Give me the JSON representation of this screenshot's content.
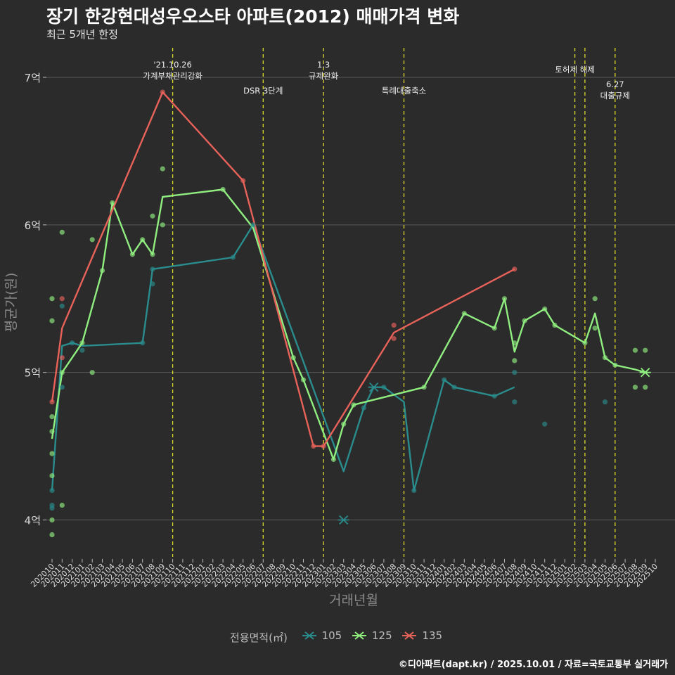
{
  "title": "장기 한강현대성우오스타 아파트(2012) 매매가격 변화",
  "subtitle": "최근 5개년 한정",
  "caption": "©디아파트(dapt.kr) / 2025.10.01 / 자료=국토교통부 실거래가",
  "legend": {
    "title": "전용면적(㎡)",
    "items": [
      {
        "label": "105",
        "color": "#2a8c8c"
      },
      {
        "label": "125",
        "color": "#90ee80"
      },
      {
        "label": "135",
        "color": "#e8625a"
      }
    ]
  },
  "chart_data": {
    "type": "line",
    "xlabel": "거래년월",
    "ylabel": "평균가(원)",
    "ylim": [
      3.75,
      7.2
    ],
    "y_ticks": [
      4,
      5,
      6,
      7
    ],
    "y_tick_labels": [
      "4억",
      "5억",
      "6억",
      "7억"
    ],
    "grid": true,
    "legend_position": "bottom",
    "x_months": [
      "202010",
      "202011",
      "202012",
      "202101",
      "202102",
      "202103",
      "202104",
      "202105",
      "202106",
      "202107",
      "202108",
      "202109",
      "202110",
      "202111",
      "202112",
      "202201",
      "202202",
      "202203",
      "202204",
      "202205",
      "202206",
      "202207",
      "202208",
      "202209",
      "202210",
      "202211",
      "202212",
      "202301",
      "202302",
      "202303",
      "202304",
      "202305",
      "202306",
      "202307",
      "202308",
      "202309",
      "202310",
      "202311",
      "202312",
      "202401",
      "202402",
      "202403",
      "202404",
      "202405",
      "202406",
      "202407",
      "202408",
      "202409",
      "202410",
      "202411",
      "202412",
      "202501",
      "202502",
      "202503",
      "202504",
      "202505",
      "202506",
      "202507",
      "202508",
      "202509",
      "202510"
    ],
    "events": [
      {
        "x": "202110",
        "lines": [
          "'21.10.26",
          "가계부채관리강화"
        ],
        "level": 0
      },
      {
        "x": "202207",
        "lines": [
          "DSR 3단계"
        ],
        "level": 1
      },
      {
        "x": "202301",
        "lines": [
          "1.3",
          "규제완화"
        ],
        "level": 0
      },
      {
        "x": "202309",
        "lines": [
          "특례대출축소"
        ],
        "level": 1
      },
      {
        "x": "202502",
        "lines": [
          "토허제 해제"
        ],
        "level": 2
      },
      {
        "x": "202503",
        "lines": [],
        "level": 2
      },
      {
        "x": "202506",
        "lines": [
          "6.27",
          "대출규제"
        ],
        "level": 3
      }
    ],
    "series": [
      {
        "name": "105",
        "color": "#2a8c8c",
        "line": [
          {
            "x": "202010",
            "y": 4.2
          },
          {
            "x": "202011",
            "y": 5.18
          },
          {
            "x": "202012",
            "y": 5.2
          },
          {
            "x": "202101",
            "y": 5.18
          },
          {
            "x": "202107",
            "y": 5.2
          },
          {
            "x": "202108",
            "y": 5.7
          },
          {
            "x": "202204",
            "y": 5.78
          },
          {
            "x": "202206",
            "y": 6.0
          },
          {
            "x": "202303",
            "y": 4.33
          },
          {
            "x": "202305",
            "y": 4.76
          },
          {
            "x": "202306",
            "y": 4.9
          },
          {
            "x": "202307",
            "y": 4.9
          },
          {
            "x": "202309",
            "y": 4.8
          },
          {
            "x": "202310",
            "y": 4.2
          },
          {
            "x": "202401",
            "y": 4.95
          },
          {
            "x": "202402",
            "y": 4.9
          },
          {
            "x": "202406",
            "y": 4.84
          },
          {
            "x": "202408",
            "y": 4.9
          }
        ],
        "points": [
          {
            "x": "202010",
            "y": 4.1
          },
          {
            "x": "202010",
            "y": 4.08
          },
          {
            "x": "202010",
            "y": 4.2
          },
          {
            "x": "202011",
            "y": 5.45
          },
          {
            "x": "202011",
            "y": 4.9
          },
          {
            "x": "202012",
            "y": 5.2
          },
          {
            "x": "202101",
            "y": 5.15
          },
          {
            "x": "202107",
            "y": 5.2
          },
          {
            "x": "202108",
            "y": 5.7
          },
          {
            "x": "202108",
            "y": 5.6
          },
          {
            "x": "202204",
            "y": 5.78
          },
          {
            "x": "202206",
            "y": 6.0
          },
          {
            "x": "202305",
            "y": 4.76
          },
          {
            "x": "202307",
            "y": 4.9
          },
          {
            "x": "202310",
            "y": 4.2
          },
          {
            "x": "202401",
            "y": 4.95
          },
          {
            "x": "202402",
            "y": 4.9
          },
          {
            "x": "202406",
            "y": 4.84
          },
          {
            "x": "202408",
            "y": 5.0
          },
          {
            "x": "202408",
            "y": 4.8
          },
          {
            "x": "202411",
            "y": 4.65
          },
          {
            "x": "202505",
            "y": 4.8
          }
        ],
        "crosses": [
          {
            "x": "202303",
            "y": 4.0
          },
          {
            "x": "202306",
            "y": 4.9
          }
        ]
      },
      {
        "name": "125",
        "color": "#90ee80",
        "line": [
          {
            "x": "202010",
            "y": 4.55
          },
          {
            "x": "202011",
            "y": 5.0
          },
          {
            "x": "202101",
            "y": 5.2
          },
          {
            "x": "202103",
            "y": 5.69
          },
          {
            "x": "202104",
            "y": 6.15
          },
          {
            "x": "202106",
            "y": 5.8
          },
          {
            "x": "202107",
            "y": 5.9
          },
          {
            "x": "202108",
            "y": 5.8
          },
          {
            "x": "202109",
            "y": 6.19
          },
          {
            "x": "202203",
            "y": 6.24
          },
          {
            "x": "202206",
            "y": 5.98
          },
          {
            "x": "202210",
            "y": 5.1
          },
          {
            "x": "202211",
            "y": 4.95
          },
          {
            "x": "202302",
            "y": 4.41
          },
          {
            "x": "202303",
            "y": 4.65
          },
          {
            "x": "202304",
            "y": 4.78
          },
          {
            "x": "202311",
            "y": 4.9
          },
          {
            "x": "202403",
            "y": 5.4
          },
          {
            "x": "202406",
            "y": 5.3
          },
          {
            "x": "202407",
            "y": 5.5
          },
          {
            "x": "202408",
            "y": 5.14
          },
          {
            "x": "202409",
            "y": 5.35
          },
          {
            "x": "202411",
            "y": 5.43
          },
          {
            "x": "202412",
            "y": 5.32
          },
          {
            "x": "202503",
            "y": 5.2
          },
          {
            "x": "202504",
            "y": 5.4
          },
          {
            "x": "202505",
            "y": 5.1
          },
          {
            "x": "202506",
            "y": 5.05
          },
          {
            "x": "202508",
            "y": 5.02
          },
          {
            "x": "202509",
            "y": 5.0
          }
        ],
        "points": [
          {
            "x": "202010",
            "y": 5.5
          },
          {
            "x": "202010",
            "y": 5.35
          },
          {
            "x": "202010",
            "y": 4.7
          },
          {
            "x": "202010",
            "y": 4.6
          },
          {
            "x": "202010",
            "y": 4.45
          },
          {
            "x": "202010",
            "y": 4.3
          },
          {
            "x": "202010",
            "y": 4.0
          },
          {
            "x": "202010",
            "y": 3.9
          },
          {
            "x": "202011",
            "y": 5.95
          },
          {
            "x": "202011",
            "y": 5.0
          },
          {
            "x": "202011",
            "y": 4.1
          },
          {
            "x": "202101",
            "y": 5.2
          },
          {
            "x": "202102",
            "y": 5.9
          },
          {
            "x": "202102",
            "y": 5.0
          },
          {
            "x": "202103",
            "y": 5.69
          },
          {
            "x": "202104",
            "y": 6.15
          },
          {
            "x": "202106",
            "y": 5.8
          },
          {
            "x": "202107",
            "y": 5.9
          },
          {
            "x": "202108",
            "y": 6.06
          },
          {
            "x": "202108",
            "y": 5.8
          },
          {
            "x": "202109",
            "y": 6.38
          },
          {
            "x": "202109",
            "y": 6.0
          },
          {
            "x": "202203",
            "y": 6.24
          },
          {
            "x": "202210",
            "y": 5.1
          },
          {
            "x": "202211",
            "y": 4.95
          },
          {
            "x": "202302",
            "y": 4.41
          },
          {
            "x": "202303",
            "y": 4.65
          },
          {
            "x": "202304",
            "y": 4.78
          },
          {
            "x": "202311",
            "y": 4.9
          },
          {
            "x": "202403",
            "y": 5.4
          },
          {
            "x": "202406",
            "y": 5.3
          },
          {
            "x": "202407",
            "y": 5.5
          },
          {
            "x": "202408",
            "y": 5.2
          },
          {
            "x": "202408",
            "y": 5.08
          },
          {
            "x": "202409",
            "y": 5.35
          },
          {
            "x": "202411",
            "y": 5.43
          },
          {
            "x": "202412",
            "y": 5.32
          },
          {
            "x": "202503",
            "y": 5.2
          },
          {
            "x": "202504",
            "y": 5.5
          },
          {
            "x": "202504",
            "y": 5.3
          },
          {
            "x": "202505",
            "y": 5.1
          },
          {
            "x": "202506",
            "y": 5.05
          },
          {
            "x": "202508",
            "y": 5.15
          },
          {
            "x": "202508",
            "y": 4.9
          },
          {
            "x": "202509",
            "y": 5.15
          },
          {
            "x": "202509",
            "y": 4.9
          }
        ],
        "crosses": [
          {
            "x": "202509",
            "y": 5.0
          }
        ]
      },
      {
        "name": "135",
        "color": "#e8625a",
        "line": [
          {
            "x": "202010",
            "y": 4.8
          },
          {
            "x": "202011",
            "y": 5.3
          },
          {
            "x": "202109",
            "y": 6.9
          },
          {
            "x": "202205",
            "y": 6.3
          },
          {
            "x": "202212",
            "y": 4.5
          },
          {
            "x": "202301",
            "y": 4.5
          },
          {
            "x": "202308",
            "y": 5.27
          },
          {
            "x": "202408",
            "y": 5.7
          }
        ],
        "points": [
          {
            "x": "202010",
            "y": 4.8
          },
          {
            "x": "202011",
            "y": 5.5
          },
          {
            "x": "202011",
            "y": 5.1
          },
          {
            "x": "202109",
            "y": 6.9
          },
          {
            "x": "202205",
            "y": 6.3
          },
          {
            "x": "202212",
            "y": 4.5
          },
          {
            "x": "202301",
            "y": 4.5
          },
          {
            "x": "202308",
            "y": 5.32
          },
          {
            "x": "202308",
            "y": 5.23
          },
          {
            "x": "202408",
            "y": 5.7
          }
        ],
        "crosses": []
      }
    ]
  }
}
